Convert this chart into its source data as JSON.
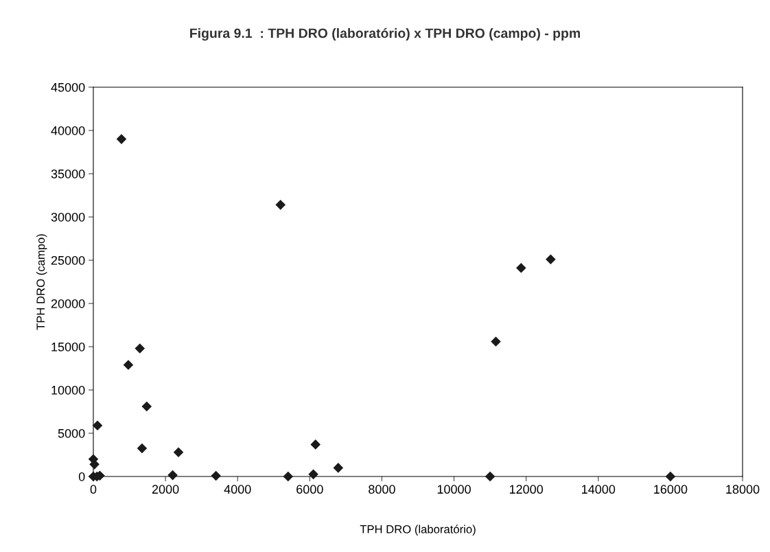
{
  "chart_data": {
    "type": "scatter",
    "title": "Figura 9.1  : TPH DRO (laboratório) x TPH DRO (campo) - ppm",
    "xlabel": "TPH DRO (laboratório)",
    "ylabel": "TPH DRO (campo)",
    "x": [
      780,
      5190,
      1290,
      970,
      1480,
      115,
      1350,
      2360,
      6160,
      2200,
      3400,
      5400,
      6100,
      6790,
      11000,
      16000,
      11160,
      11860,
      12680,
      0,
      30,
      180,
      0,
      100
    ],
    "values": [
      39000,
      31400,
      14800,
      12900,
      8100,
      5900,
      3250,
      2800,
      3700,
      150,
      80,
      0,
      250,
      1000,
      0,
      0,
      15600,
      24100,
      25100,
      2000,
      1400,
      100,
      0,
      0
    ],
    "color": "#1a1a1a",
    "marker": "diamond",
    "grid": false,
    "legend": false,
    "xlim": [
      0,
      18000
    ],
    "xticks": [
      0,
      2000,
      4000,
      6000,
      8000,
      10000,
      12000,
      14000,
      16000,
      18000
    ],
    "ylim": [
      0,
      45000
    ],
    "yticks": [
      0,
      5000,
      10000,
      15000,
      20000,
      25000,
      30000,
      35000,
      40000,
      45000
    ]
  }
}
